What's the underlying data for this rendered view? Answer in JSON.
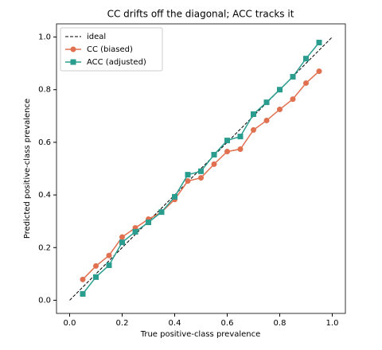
{
  "chart_data": {
    "type": "line",
    "title": "CC drifts off the diagonal; ACC tracks it",
    "x_label": "True positive-class prevalence",
    "y_label": "Predicted positive-class prevalence",
    "xlim": [
      -0.05,
      1.05
    ],
    "ylim": [
      -0.05,
      1.05
    ],
    "xticks": [
      {
        "value": 0,
        "label": "0.0"
      },
      {
        "value": 0.2,
        "label": "0.2"
      },
      {
        "value": 0.4,
        "label": "0.4"
      },
      {
        "value": 0.6,
        "label": "0.6"
      },
      {
        "value": 0.8,
        "label": "0.8"
      },
      {
        "value": 1,
        "label": "1.0"
      }
    ],
    "yticks": [
      {
        "value": 0,
        "label": "0.0"
      },
      {
        "value": 0.2,
        "label": "0.2"
      },
      {
        "value": 0.4,
        "label": "0.4"
      },
      {
        "value": 0.6,
        "label": "0.6"
      },
      {
        "value": 0.8,
        "label": "0.8"
      },
      {
        "value": 1,
        "label": "1.0"
      }
    ],
    "legend": "upper left",
    "series": [
      {
        "name": "ideal",
        "color": "#000000",
        "linestyle": "dashed",
        "marker": "none",
        "x": [
          0,
          1
        ],
        "values": [
          0,
          1
        ]
      },
      {
        "name": "CC (biased)",
        "color": "#e07050",
        "linestyle": "solid",
        "marker": "circle",
        "x": [
          0.05,
          0.1,
          0.15,
          0.2,
          0.25,
          0.3,
          0.35,
          0.4,
          0.45,
          0.5,
          0.55,
          0.6,
          0.65,
          0.7,
          0.75,
          0.8,
          0.85,
          0.9,
          0.95
        ],
        "values": [
          0.079,
          0.13,
          0.17,
          0.24,
          0.275,
          0.308,
          0.335,
          0.383,
          0.453,
          0.465,
          0.517,
          0.565,
          0.574,
          0.647,
          0.683,
          0.725,
          0.764,
          0.825,
          0.87
        ]
      },
      {
        "name": "ACC (adjusted)",
        "color": "#2a9d8f",
        "linestyle": "solid",
        "marker": "square",
        "x": [
          0.05,
          0.1,
          0.15,
          0.2,
          0.25,
          0.3,
          0.35,
          0.4,
          0.45,
          0.5,
          0.55,
          0.6,
          0.65,
          0.7,
          0.75,
          0.8,
          0.85,
          0.9,
          0.95
        ],
        "values": [
          0.024,
          0.088,
          0.133,
          0.22,
          0.26,
          0.296,
          0.335,
          0.393,
          0.477,
          0.49,
          0.553,
          0.607,
          0.622,
          0.707,
          0.752,
          0.8,
          0.849,
          0.918,
          0.979
        ]
      }
    ]
  }
}
